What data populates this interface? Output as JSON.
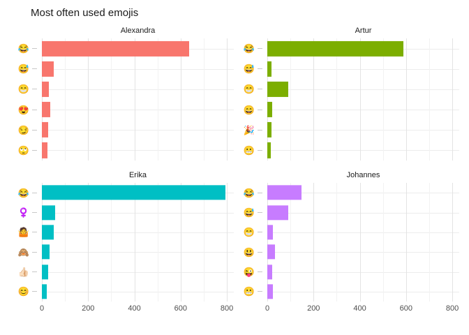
{
  "header": {
    "title": "Most often used emojis"
  },
  "chart_data": {
    "type": "bar",
    "orientation": "horizontal",
    "title": "Most often used emojis",
    "xlabel": "",
    "ylabel": "",
    "xlim": [
      0,
      830
    ],
    "x_ticks": [
      0,
      200,
      400,
      600,
      800
    ],
    "x_tick_labels": [
      "0",
      "200",
      "400",
      "600",
      "800"
    ],
    "x_minor_ticks": [
      100,
      300,
      500,
      700
    ],
    "grid": true,
    "legend": false,
    "facets": [
      {
        "name": "Alexandra",
        "color": "#F8766D",
        "categories": [
          "😂",
          "😅",
          "😁",
          "😍",
          "😏",
          "🙄"
        ],
        "values": [
          637,
          50,
          30,
          36,
          27,
          24
        ]
      },
      {
        "name": "Artur",
        "color": "#7CAE00",
        "categories": [
          "😂",
          "😅",
          "😁",
          "😄",
          "🎉",
          "😬"
        ],
        "values": [
          588,
          17,
          92,
          22,
          19,
          16
        ]
      },
      {
        "name": "Erika",
        "color": "#00BFC4",
        "categories": [
          "😂",
          "♀️",
          "🤷",
          "🙈",
          "👍🏻",
          "😊"
        ],
        "values": [
          795,
          57,
          50,
          32,
          27,
          20
        ]
      },
      {
        "name": "Johannes",
        "color": "#C77CFF",
        "categories": [
          "😂",
          "😅",
          "😁",
          "😃",
          "😜",
          "😬"
        ],
        "values": [
          148,
          90,
          24,
          33,
          21,
          24
        ]
      }
    ]
  }
}
